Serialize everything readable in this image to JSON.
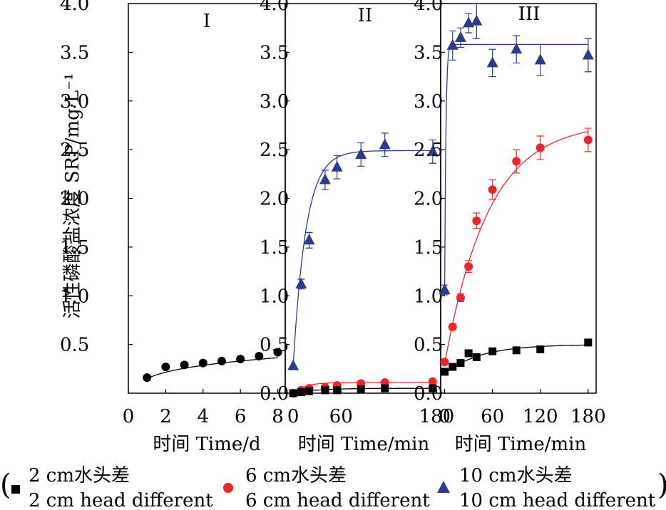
{
  "chart_data": [
    {
      "type": "scatter",
      "panel_label": "I",
      "xlabel": "时间 Time/d",
      "ylabel": "活性磷酸盐浓度 SRP/mg·L⁻¹",
      "xlim": [
        0,
        8.4
      ],
      "ylim": [
        0,
        4.0
      ],
      "xticks": [
        "0",
        "2",
        "4",
        "6",
        "8"
      ],
      "yticks": [
        "0.5",
        "1.0",
        "1.5",
        "2.0",
        "2.5",
        "3.0",
        "3.5",
        "4.0"
      ],
      "series": [
        {
          "legend_ref": "6cm",
          "x": [
            1,
            2,
            3,
            4,
            5,
            6,
            7,
            8
          ],
          "y": [
            0.16,
            0.27,
            0.29,
            0.31,
            0.33,
            0.35,
            0.38,
            0.42
          ],
          "color": "#000000",
          "marker": "circle"
        }
      ]
    },
    {
      "type": "scatter",
      "panel_label": "II",
      "xlabel": "时间 Time/min",
      "xlim": [
        -10,
        185
      ],
      "ylim": [
        0,
        4.0
      ],
      "xticks": [
        "0",
        "60",
        "180"
      ],
      "yticks": [
        "0.0",
        "0.5",
        "1.0",
        "1.5",
        "2.0",
        "2.5",
        "3.0",
        "3.5",
        "4.0"
      ],
      "series": [
        {
          "legend_ref": "10cm",
          "x": [
            0,
            10,
            20,
            40,
            55,
            85,
            115,
            175
          ],
          "y": [
            0.28,
            1.12,
            1.57,
            2.19,
            2.32,
            2.45,
            2.55,
            2.48
          ],
          "err": [
            0,
            0.05,
            0.08,
            0.1,
            0.12,
            0.12,
            0.12,
            0.12
          ],
          "color": "#2e3a8c",
          "marker": "triangle"
        },
        {
          "legend_ref": "6cm",
          "x": [
            0,
            10,
            20,
            40,
            55,
            85,
            115,
            175
          ],
          "y": [
            0.0,
            0.03,
            0.05,
            0.06,
            0.08,
            0.1,
            0.11,
            0.12
          ],
          "color": "#e8262b",
          "marker": "circle"
        },
        {
          "legend_ref": "2cm",
          "x": [
            0,
            10,
            20,
            40,
            55,
            85,
            115,
            175
          ],
          "y": [
            0.0,
            0.01,
            0.02,
            0.03,
            0.03,
            0.04,
            0.05,
            0.05
          ],
          "color": "#000000",
          "marker": "square"
        }
      ]
    },
    {
      "type": "scatter",
      "panel_label": "III",
      "xlabel": "时间 Time/min",
      "xlim": [
        -5,
        190
      ],
      "ylim": [
        0,
        4.0
      ],
      "xticks": [
        "0",
        "60",
        "120",
        "180"
      ],
      "yticks": [
        "0.0",
        "0.5",
        "1.0",
        "1.5",
        "2.0",
        "2.5",
        "3.0",
        "3.5",
        "4.0"
      ],
      "series": [
        {
          "legend_ref": "10cm",
          "x": [
            0,
            10,
            20,
            30,
            40,
            60,
            90,
            120,
            180
          ],
          "y": [
            1.06,
            3.57,
            3.65,
            3.8,
            3.82,
            3.39,
            3.53,
            3.42,
            3.47
          ],
          "err": [
            0.05,
            0.15,
            0.1,
            0.1,
            0.18,
            0.14,
            0.14,
            0.16,
            0.17
          ],
          "color": "#2e3a8c",
          "marker": "triangle"
        },
        {
          "legend_ref": "6cm",
          "x": [
            0,
            10,
            20,
            30,
            40,
            60,
            90,
            120,
            180
          ],
          "y": [
            0.32,
            0.68,
            0.98,
            1.3,
            1.77,
            2.09,
            2.38,
            2.52,
            2.6
          ],
          "err": [
            0,
            0.03,
            0.04,
            0.06,
            0.08,
            0.1,
            0.12,
            0.12,
            0.12
          ],
          "color": "#e8262b",
          "marker": "circle"
        },
        {
          "legend_ref": "2cm",
          "x": [
            0,
            10,
            20,
            30,
            40,
            60,
            90,
            120,
            180
          ],
          "y": [
            0.22,
            0.27,
            0.31,
            0.41,
            0.37,
            0.43,
            0.44,
            0.45,
            0.52
          ],
          "color": "#000000",
          "marker": "square"
        }
      ]
    }
  ],
  "legend": {
    "items": [
      {
        "key": "2cm",
        "marker": "square",
        "color": "#000000",
        "line1": "2 cm水头差",
        "line2": "2 cm head different"
      },
      {
        "key": "6cm",
        "marker": "circle",
        "color": "#e8262b",
        "line1": "6 cm水头差",
        "line2": "6 cm head different"
      },
      {
        "key": "10cm",
        "marker": "triangle",
        "color": "#2e3a8c",
        "line1": "10 cm水头差",
        "line2": "10 cm head different"
      }
    ],
    "open_paren": "(",
    "close_paren": ")"
  }
}
